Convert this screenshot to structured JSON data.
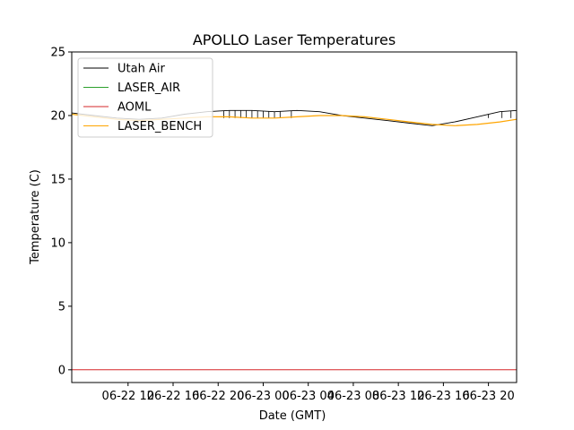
{
  "chart_data": {
    "type": "line",
    "title": "APOLLO Laser Temperatures",
    "xlabel": "Date (GMT)",
    "ylabel": "Temperature (C)",
    "ylim": [
      -1,
      25
    ],
    "xlim_hours": [
      8,
      47.5
    ],
    "yticks": [
      0,
      5,
      10,
      15,
      20,
      25
    ],
    "ytick_labels": [
      "0",
      "5",
      "10",
      "15",
      "20",
      "25"
    ],
    "xtick_hours": [
      13,
      17,
      21,
      25,
      29,
      33,
      37,
      41,
      45
    ],
    "xtick_labels": [
      "06-22 12",
      "06-22 16",
      "06-22 20",
      "06-23 00",
      "06-23 04",
      "06-23 08",
      "06-23 12",
      "06-23 16",
      "06-23 20"
    ],
    "grid": false,
    "legend_position": "top-left",
    "series": [
      {
        "name": "Utah Air",
        "color": "#000000",
        "x_hours": [
          8,
          10,
          12,
          14,
          16,
          18,
          20,
          22,
          24,
          26,
          28,
          30,
          32,
          34,
          36,
          38,
          40,
          42,
          44,
          46,
          47.5
        ],
        "values": [
          20.2,
          20.0,
          19.8,
          19.7,
          19.8,
          20.1,
          20.3,
          20.4,
          20.4,
          20.3,
          20.4,
          20.3,
          20.0,
          19.8,
          19.6,
          19.4,
          19.2,
          19.5,
          19.9,
          20.3,
          20.4
        ],
        "dropouts": [
          21.5,
          22.0,
          22.5,
          23.0,
          23.5,
          24.0,
          24.5,
          25.0,
          25.5,
          26.0,
          26.5,
          27.5,
          45.0,
          46.2,
          47.0
        ],
        "dropout_value": 19.8
      },
      {
        "name": "LASER_AIR",
        "color": "#2ca02c",
        "x_hours": [
          8,
          47.5
        ],
        "values": [
          null,
          null
        ]
      },
      {
        "name": "AOML",
        "color": "#d62728",
        "x_hours": [
          8,
          47.5
        ],
        "values": [
          0,
          0
        ]
      },
      {
        "name": "LASER_BENCH",
        "color": "#ffa500",
        "x_hours": [
          8,
          10,
          12,
          14,
          16,
          18,
          20,
          22,
          24,
          26,
          28,
          30,
          32,
          34,
          36,
          38,
          40,
          42,
          44,
          46,
          47.5
        ],
        "values": [
          20.1,
          19.9,
          19.7,
          19.6,
          19.7,
          19.8,
          19.9,
          19.9,
          19.8,
          19.8,
          19.9,
          20.0,
          20.0,
          19.9,
          19.7,
          19.5,
          19.3,
          19.2,
          19.3,
          19.5,
          19.7
        ]
      }
    ]
  }
}
